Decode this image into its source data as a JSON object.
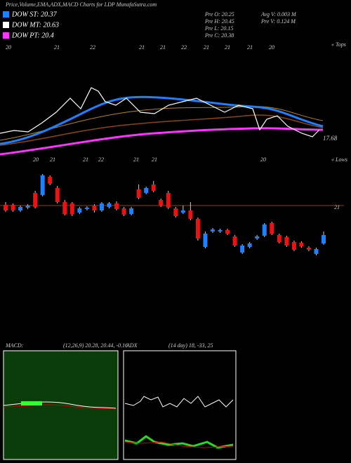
{
  "chart_data": {
    "type": "candlestick",
    "title": "Price,Volume,EMA,ADX,MACD Charts for LDP MunafaSutra.com",
    "legend": [
      "DOW ST: 20.37",
      "DOW MT: 20.63",
      "DOW PT: 20.4"
    ],
    "stats": [
      "Pre  O: 20.25",
      "Pre  H: 20.45",
      "Pre  L: 20.15",
      "Pre  C: 20.38",
      "Avg V: 0.003 M",
      "Pre  V: 0.124  M"
    ],
    "top_labels": [
      "20",
      "21",
      "22",
      "21",
      "21",
      "22",
      "21",
      "21",
      "21",
      "20"
    ],
    "low_labels": [
      "20",
      "21",
      "21",
      "22",
      "21",
      "21",
      "20"
    ],
    "tops_label": "« Tops",
    "lows_label": "« Lows",
    "price_note": "17.68",
    "macd_label": "MACD:",
    "macd_values": "(12,26,9) 20.28, 20.44, -0.16",
    "adx_label": "ADX",
    "adx_values": "(14  day) 18, -33, 25",
    "up_color": "#1e7fff",
    "down_color": "#ee1111",
    "ylim": [
      19.93,
      21.63
    ],
    "yticks": [
      21
    ],
    "open": [
      21.01,
      21.01,
      20.93,
      20.97,
      21.18,
      21.15,
      21.41,
      21.25,
      21.05,
      21.03,
      20.9,
      20.95,
      21.0,
      20.93,
      20.98,
      21.03,
      20.96,
      20.88,
      21.23,
      21.18,
      21.3,
      21.08,
      21.18,
      20.96,
      20.9,
      20.93,
      20.81,
      20.41,
      20.63,
      20.63,
      20.65,
      20.56,
      20.33,
      20.41,
      20.53,
      20.57,
      20.75,
      20.58,
      20.55,
      20.48,
      20.47,
      20.4,
      20.31,
      20.46
    ],
    "high": [
      21.05,
      21.03,
      21.0,
      21.02,
      21.21,
      21.45,
      21.43,
      21.28,
      21.08,
      21.05,
      20.98,
      20.99,
      21.02,
      21.05,
      21.05,
      21.06,
      20.98,
      20.98,
      21.3,
      21.27,
      21.35,
      21.1,
      21.21,
      20.98,
      21.0,
      21.05,
      20.83,
      20.63,
      20.68,
      20.67,
      20.67,
      20.58,
      20.45,
      20.48,
      20.58,
      20.75,
      20.77,
      20.6,
      20.57,
      20.5,
      20.49,
      20.42,
      20.4,
      20.63
    ],
    "low": [
      20.91,
      20.91,
      20.91,
      20.95,
      20.96,
      21.13,
      21.29,
      21.03,
      20.86,
      20.85,
      20.88,
      20.93,
      20.9,
      20.91,
      20.96,
      20.93,
      20.85,
      20.86,
      21.09,
      21.16,
      21.19,
      20.98,
      20.95,
      20.83,
      20.88,
      20.79,
      20.5,
      20.39,
      20.61,
      20.61,
      20.58,
      20.41,
      20.31,
      20.39,
      20.51,
      20.55,
      20.58,
      20.46,
      20.41,
      20.35,
      20.4,
      20.35,
      20.29,
      20.44
    ],
    "close": [
      20.93,
      20.93,
      20.98,
      21.0,
      20.98,
      21.43,
      21.31,
      21.05,
      20.88,
      20.88,
      20.96,
      20.97,
      20.93,
      21.03,
      21.03,
      20.95,
      20.87,
      20.96,
      21.11,
      21.25,
      21.21,
      21.0,
      20.97,
      20.85,
      20.93,
      20.81,
      20.53,
      20.6,
      20.66,
      20.65,
      20.6,
      20.43,
      20.43,
      20.46,
      20.56,
      20.73,
      20.6,
      20.48,
      20.43,
      20.37,
      20.42,
      20.37,
      20.38,
      20.58
    ]
  }
}
